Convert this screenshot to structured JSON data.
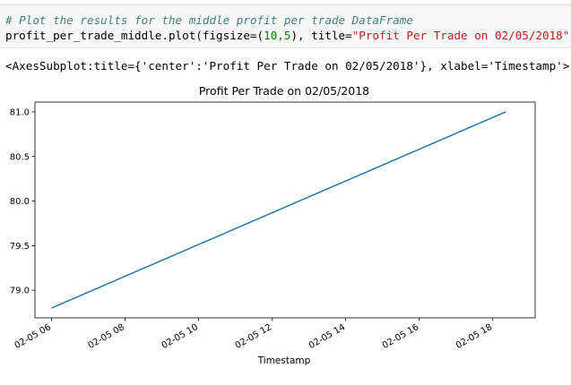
{
  "cell": {
    "comment": "# Plot the results for the middle profit per trade DataFrame",
    "code_prefix": "profit_per_trade_middle.plot(figsize=(",
    "code_args": "10,5",
    "code_mid": "), title=",
    "code_title_str": "\"Profit Per Trade on 02/05/2018\"",
    "code_suffix": ")"
  },
  "output": {
    "repr": "<AxesSubplot:title={'center':'Profit Per Trade on 02/05/2018'}, xlabel='Timestamp'>"
  },
  "chart_data": {
    "type": "line",
    "title": "Profit Per Trade on 02/05/2018",
    "xlabel": "Timestamp",
    "ylabel": "",
    "x_tick_labels": [
      "02-05 06",
      "02-05 08",
      "02-05 10",
      "02-05 12",
      "02-05 14",
      "02-05 16",
      "02-05 18"
    ],
    "y_tick_labels": [
      "79.0",
      "79.5",
      "80.0",
      "80.5",
      "81.0"
    ],
    "xlim": [
      5.55,
      19.15
    ],
    "ylim": [
      78.69,
      81.11
    ],
    "series": [
      {
        "name": "profit_per_trade_middle",
        "color": "#1f77b4",
        "x": [
          6.0,
          18.35
        ],
        "y": [
          78.8,
          81.0
        ]
      }
    ]
  }
}
